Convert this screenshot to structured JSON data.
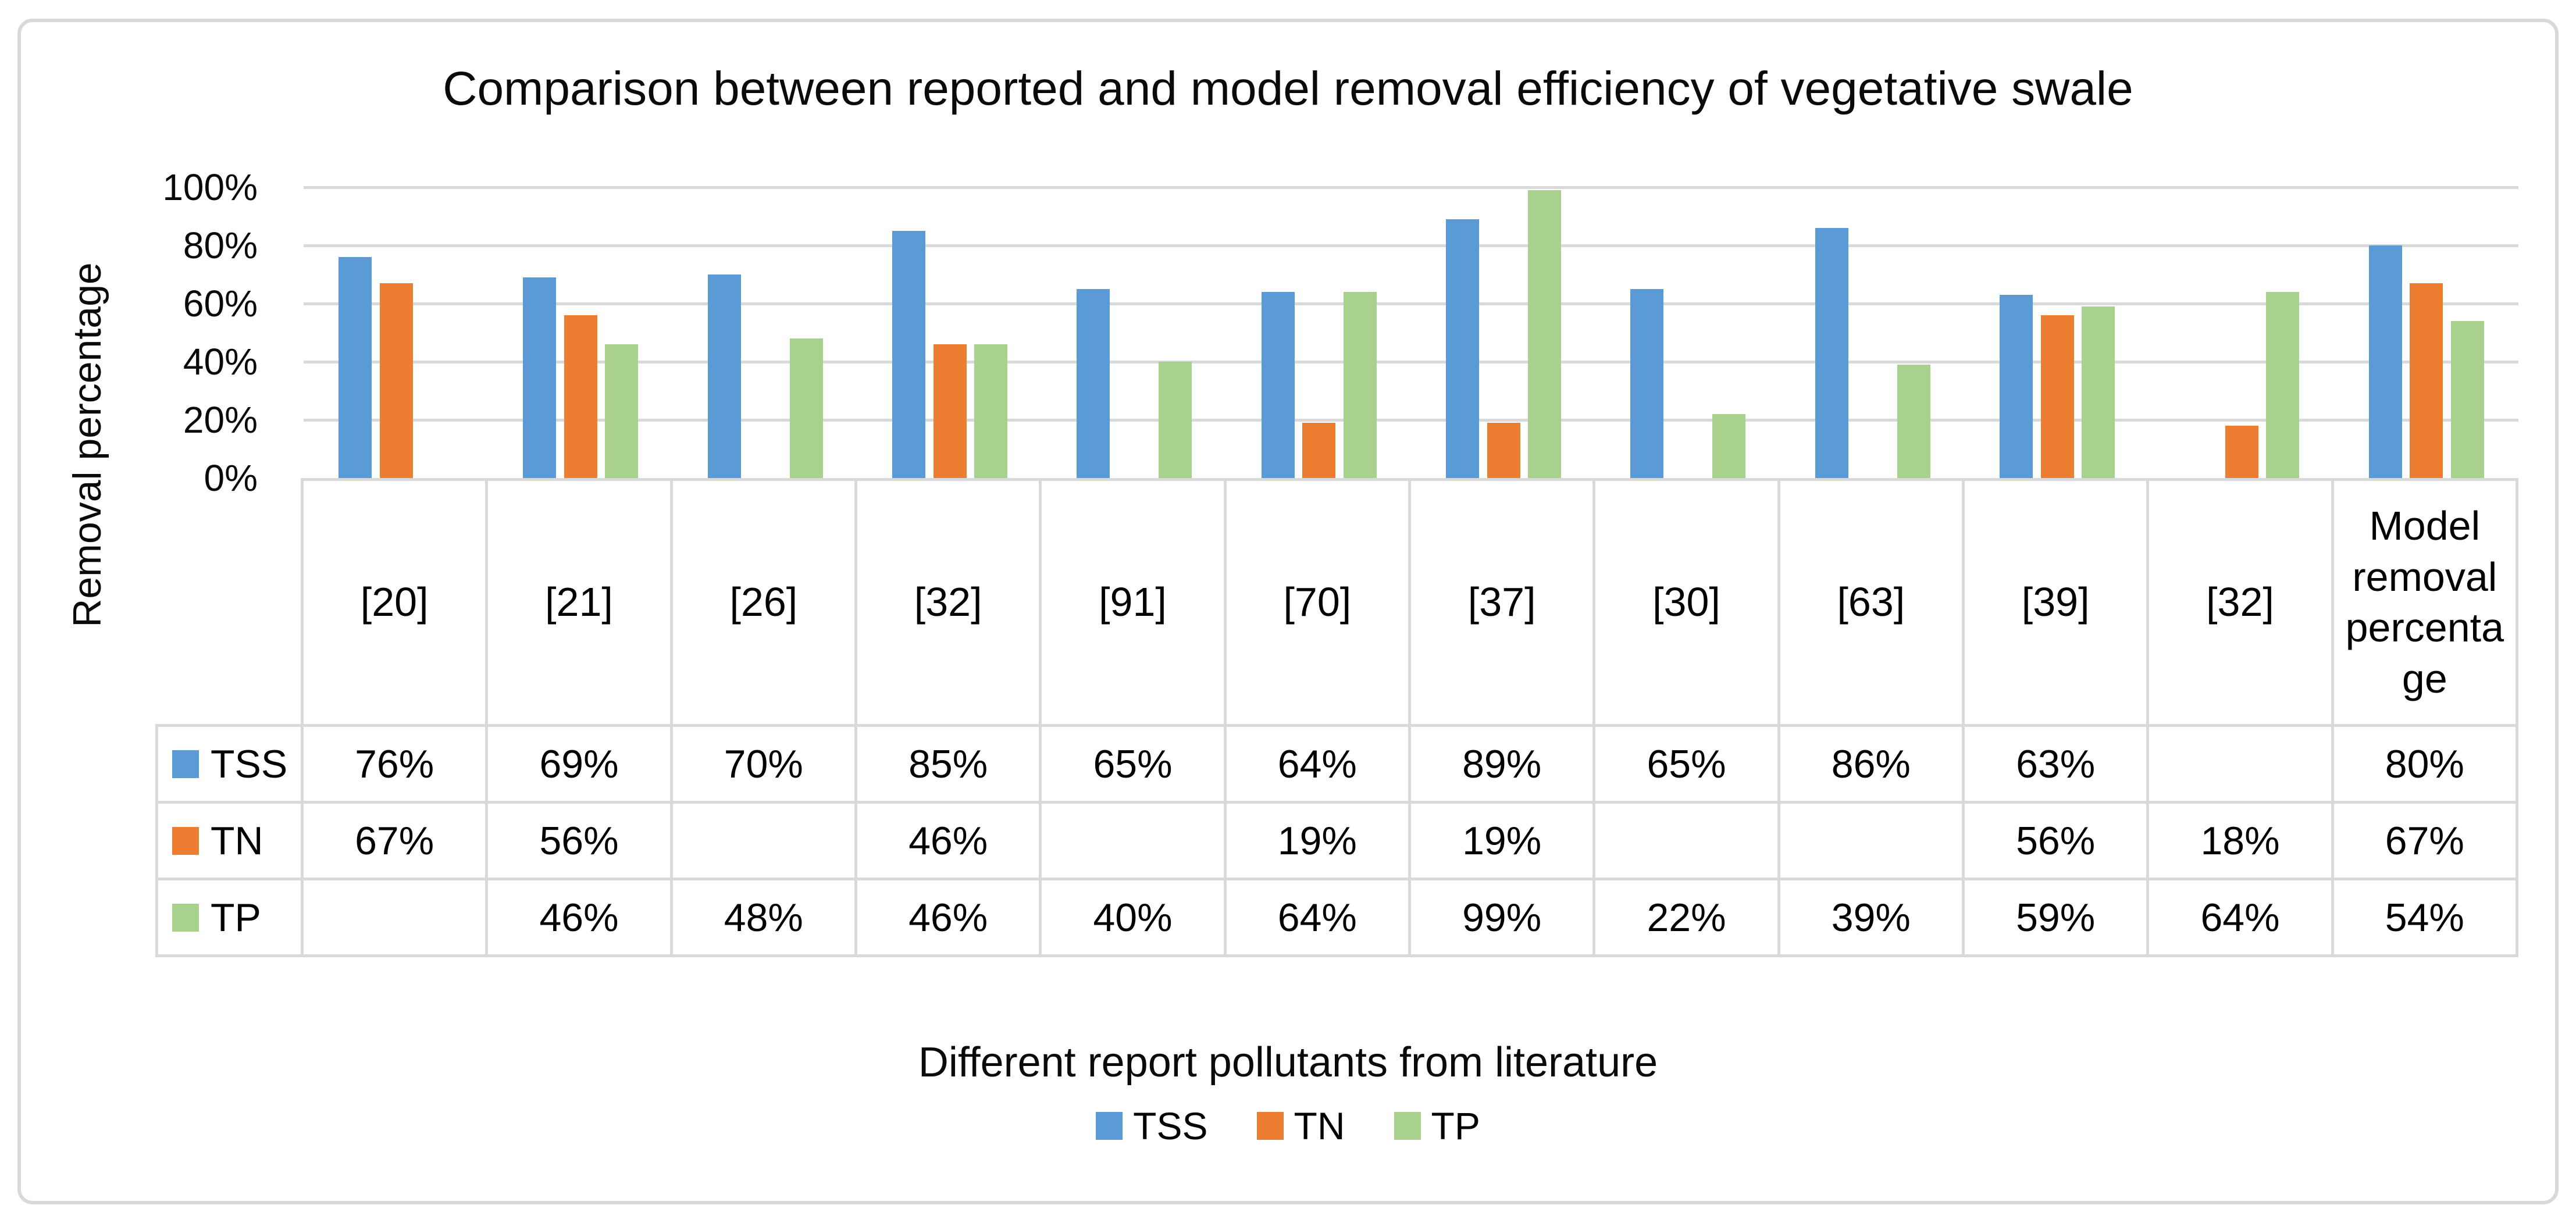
{
  "chart_data": {
    "type": "bar",
    "title": "Comparison between reported and model removal efficiency of vegetative swale",
    "xlabel": "Different report pollutants from literature",
    "ylabel": "Removal percentage",
    "ylim": [
      0,
      100
    ],
    "y_tick_labels": [
      "0%",
      "20%",
      "40%",
      "60%",
      "80%",
      "100%"
    ],
    "y_tick_values": [
      0,
      20,
      40,
      60,
      80,
      100
    ],
    "grid": "horizontal",
    "legend_position": "bottom",
    "data_table_shown": true,
    "categories": [
      "[20]",
      "[21]",
      "[26]",
      "[32]",
      "[91]",
      "[70]",
      "[37]",
      "[30]",
      "[63]",
      "[39]",
      "[32]",
      "Model removal percentage"
    ],
    "series": [
      {
        "name": "TSS",
        "color": "#5B9BD5",
        "values": [
          76,
          69,
          70,
          85,
          65,
          64,
          89,
          65,
          86,
          63,
          null,
          80
        ]
      },
      {
        "name": "TN",
        "color": "#ED7D31",
        "values": [
          67,
          56,
          null,
          46,
          null,
          19,
          19,
          null,
          null,
          56,
          18,
          67
        ]
      },
      {
        "name": "TP",
        "color": "#A9D18E",
        "values": [
          null,
          46,
          48,
          46,
          40,
          64,
          99,
          22,
          39,
          59,
          64,
          54
        ]
      }
    ]
  },
  "colors": {
    "series_tss": "#5B9BD5",
    "series_tn": "#ED7D31",
    "series_tp": "#A9D18E",
    "gridline": "#D9D9D9",
    "table_border": "#D9D9D9",
    "frame_border": "#D9D9D9",
    "background": "#FFFFFF",
    "text": "#000000"
  }
}
